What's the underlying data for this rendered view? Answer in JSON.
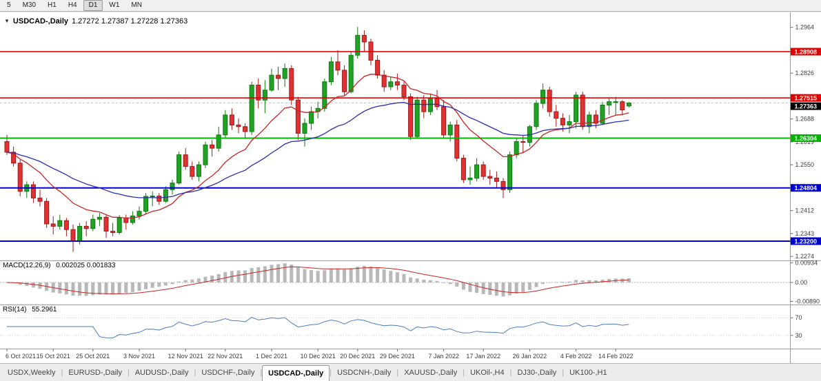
{
  "icons": {
    "collapse_arrow": "▼"
  },
  "toolbar": {
    "periods": [
      "5",
      "M30",
      "H1",
      "H4",
      "D1",
      "W1",
      "MN"
    ],
    "active_period": "D1"
  },
  "chart": {
    "symbol_label": "USDCAD-,Daily",
    "ohlc_label": "1.27272 1.27387 1.27228 1.27363",
    "price_axis_labels": [
      "1.2964",
      "1.2826",
      "1.2688",
      "1.2619",
      "1.2550",
      "1.2412",
      "1.2343",
      "1.2274"
    ],
    "levels": [
      {
        "label": "1.28908",
        "price": 1.28908,
        "color": "#e00000",
        "width": 1.6
      },
      {
        "label": "1.27515",
        "price": 1.27515,
        "color": "#e00000",
        "width": 1.6
      },
      {
        "label": "1.26304",
        "price": 1.26304,
        "color": "#00b400",
        "width": 2
      },
      {
        "label": "1.24804",
        "price": 1.24804,
        "color": "#0000d0",
        "width": 2
      },
      {
        "label": "1.23200",
        "price": 1.232,
        "color": "#0000d0",
        "width": 2
      }
    ],
    "current_price": {
      "label": "1.27363",
      "value": 1.27363,
      "badge_color": "#000000"
    }
  },
  "macd_panel": {
    "title": "MACD(12,26,9)",
    "values": "0.002025 0.001833",
    "axis_labels": [
      "0.00934",
      "0.00",
      "-0.00890"
    ]
  },
  "rsi_panel": {
    "title": "RSI(14)",
    "value": "55.2961",
    "axis_labels": [
      "70",
      "30"
    ]
  },
  "date_axis": {
    "ticks": [
      {
        "label": "6 Oct 2021",
        "index": 0
      },
      {
        "label": "15 Oct 2021",
        "index": 7
      },
      {
        "label": "25 Oct 2021",
        "index": 13
      },
      {
        "label": "3 Nov 2021",
        "index": 20
      },
      {
        "label": "12 Nov 2021",
        "index": 27
      },
      {
        "label": "22 Nov 2021",
        "index": 33
      },
      {
        "label": "1 Dec 2021",
        "index": 40
      },
      {
        "label": "10 Dec 2021",
        "index": 47
      },
      {
        "label": "20 Dec 2021",
        "index": 53
      },
      {
        "label": "29 Dec 2021",
        "index": 59
      },
      {
        "label": "7 Jan 2022",
        "index": 66
      },
      {
        "label": "17 Jan 2022",
        "index": 72
      },
      {
        "label": "26 Jan 2022",
        "index": 79
      },
      {
        "label": "4 Feb 2022",
        "index": 86
      },
      {
        "label": "14 Feb 2022",
        "index": 92
      }
    ]
  },
  "tabs": {
    "separator": "|",
    "items": [
      {
        "label": "USDX,Weekly",
        "active": false
      },
      {
        "label": "EURUSD-,Daily",
        "active": false
      },
      {
        "label": "AUDUSD-,Daily",
        "active": false
      },
      {
        "label": "USDCHF-,Daily",
        "active": false
      },
      {
        "label": "USDCAD-,Daily",
        "active": true
      },
      {
        "label": "USDCNH-,Daily",
        "active": false
      },
      {
        "label": "XAUUSD-,Daily",
        "active": false
      },
      {
        "label": "UKOil-,H4",
        "active": false
      },
      {
        "label": "DJ30-,Daily",
        "active": false
      },
      {
        "label": "UK100-,H1",
        "active": false
      }
    ]
  },
  "chart_data": {
    "type": "candlestick",
    "symbol": "USDCAD-",
    "timeframe": "Daily",
    "ylim": [
      1.2262,
      1.3009
    ],
    "bull_color": "#21a126",
    "bull_stroke": "#0c7a0e",
    "bear_color": "#e03232",
    "bear_stroke": "#a01818",
    "candles": [
      [
        1.262,
        1.264,
        1.258,
        1.2588
      ],
      [
        1.2588,
        1.2605,
        1.2545,
        1.2555
      ],
      [
        1.2555,
        1.2565,
        1.2455,
        1.247
      ],
      [
        1.247,
        1.25,
        1.245,
        1.249
      ],
      [
        1.249,
        1.25,
        1.2435,
        1.245
      ],
      [
        1.245,
        1.2475,
        1.2425,
        1.244
      ],
      [
        1.244,
        1.245,
        1.236,
        1.2372
      ],
      [
        1.2372,
        1.2395,
        1.234,
        1.2365
      ],
      [
        1.2365,
        1.24,
        1.2355,
        1.2382
      ],
      [
        1.2382,
        1.239,
        1.2335,
        1.2355
      ],
      [
        1.2355,
        1.237,
        1.2288,
        1.232
      ],
      [
        1.232,
        1.2375,
        1.231,
        1.2365
      ],
      [
        1.2365,
        1.238,
        1.2335,
        1.2358
      ],
      [
        1.2358,
        1.24,
        1.235,
        1.2386
      ],
      [
        1.2386,
        1.2405,
        1.2365,
        1.2392
      ],
      [
        1.2392,
        1.2398,
        1.233,
        1.235
      ],
      [
        1.235,
        1.2375,
        1.2335,
        1.2346
      ],
      [
        1.2346,
        1.2398,
        1.234,
        1.239
      ],
      [
        1.239,
        1.24,
        1.2355,
        1.2376
      ],
      [
        1.2376,
        1.241,
        1.237,
        1.2396
      ],
      [
        1.2396,
        1.2425,
        1.2385,
        1.241
      ],
      [
        1.241,
        1.2465,
        1.24,
        1.2455
      ],
      [
        1.2455,
        1.247,
        1.2425,
        1.2456
      ],
      [
        1.2456,
        1.2465,
        1.243,
        1.244
      ],
      [
        1.244,
        1.2485,
        1.2435,
        1.2475
      ],
      [
        1.2475,
        1.2505,
        1.246,
        1.2495
      ],
      [
        1.2495,
        1.259,
        1.249,
        1.258
      ],
      [
        1.258,
        1.26,
        1.2535,
        1.2545
      ],
      [
        1.2545,
        1.256,
        1.2505,
        1.2515
      ],
      [
        1.2515,
        1.256,
        1.25,
        1.255
      ],
      [
        1.255,
        1.262,
        1.254,
        1.261
      ],
      [
        1.261,
        1.2625,
        1.2575,
        1.26
      ],
      [
        1.26,
        1.2665,
        1.259,
        1.264
      ],
      [
        1.264,
        1.2715,
        1.263,
        1.27
      ],
      [
        1.27,
        1.272,
        1.2655,
        1.267
      ],
      [
        1.267,
        1.269,
        1.2645,
        1.2665
      ],
      [
        1.2665,
        1.2675,
        1.263,
        1.265
      ],
      [
        1.265,
        1.28,
        1.264,
        1.279
      ],
      [
        1.279,
        1.281,
        1.272,
        1.2745
      ],
      [
        1.2745,
        1.2805,
        1.2705,
        1.2775
      ],
      [
        1.2775,
        1.284,
        1.277,
        1.282
      ],
      [
        1.282,
        1.2845,
        1.2775,
        1.281
      ],
      [
        1.281,
        1.2855,
        1.2785,
        1.284
      ],
      [
        1.284,
        1.285,
        1.273,
        1.2745
      ],
      [
        1.2745,
        1.2755,
        1.2625,
        1.2645
      ],
      [
        1.2645,
        1.269,
        1.2605,
        1.2675
      ],
      [
        1.2675,
        1.2725,
        1.2655,
        1.271
      ],
      [
        1.271,
        1.274,
        1.269,
        1.272
      ],
      [
        1.272,
        1.281,
        1.271,
        1.28
      ],
      [
        1.28,
        1.2875,
        1.279,
        1.286
      ],
      [
        1.286,
        1.2895,
        1.282,
        1.2835
      ],
      [
        1.2835,
        1.285,
        1.276,
        1.277
      ],
      [
        1.277,
        1.289,
        1.2765,
        1.288
      ],
      [
        1.288,
        1.2965,
        1.287,
        1.294
      ],
      [
        1.294,
        1.2955,
        1.289,
        1.292
      ],
      [
        1.292,
        1.293,
        1.285,
        1.2865
      ],
      [
        1.2865,
        1.288,
        1.281,
        1.282
      ],
      [
        1.282,
        1.2835,
        1.277,
        1.2785
      ],
      [
        1.2785,
        1.2815,
        1.2775,
        1.28
      ],
      [
        1.28,
        1.2825,
        1.2775,
        1.279
      ],
      [
        1.279,
        1.28,
        1.2745,
        1.2755
      ],
      [
        1.2755,
        1.2765,
        1.2625,
        1.2635
      ],
      [
        1.2635,
        1.2755,
        1.263,
        1.2745
      ],
      [
        1.2745,
        1.276,
        1.269,
        1.271
      ],
      [
        1.271,
        1.2765,
        1.27,
        1.275
      ],
      [
        1.275,
        1.2775,
        1.2715,
        1.2725
      ],
      [
        1.2725,
        1.2745,
        1.263,
        1.264
      ],
      [
        1.264,
        1.268,
        1.262,
        1.267
      ],
      [
        1.267,
        1.2685,
        1.256,
        1.257
      ],
      [
        1.257,
        1.258,
        1.2495,
        1.2505
      ],
      [
        1.2505,
        1.2545,
        1.249,
        1.251
      ],
      [
        1.251,
        1.257,
        1.25,
        1.255
      ],
      [
        1.255,
        1.256,
        1.2505,
        1.2515
      ],
      [
        1.2515,
        1.2535,
        1.249,
        1.251
      ],
      [
        1.251,
        1.253,
        1.248,
        1.25
      ],
      [
        1.25,
        1.251,
        1.245,
        1.2475
      ],
      [
        1.2475,
        1.259,
        1.2465,
        1.258
      ],
      [
        1.258,
        1.263,
        1.257,
        1.262
      ],
      [
        1.262,
        1.264,
        1.2585,
        1.2618
      ],
      [
        1.2618,
        1.267,
        1.2605,
        1.2665
      ],
      [
        1.2665,
        1.2745,
        1.2655,
        1.2735
      ],
      [
        1.2735,
        1.2795,
        1.272,
        1.2775
      ],
      [
        1.2775,
        1.2785,
        1.2695,
        1.271
      ],
      [
        1.271,
        1.273,
        1.2665,
        1.269
      ],
      [
        1.269,
        1.2705,
        1.265,
        1.267
      ],
      [
        1.267,
        1.27,
        1.2645,
        1.268
      ],
      [
        1.268,
        1.277,
        1.266,
        1.276
      ],
      [
        1.276,
        1.277,
        1.2655,
        1.2665
      ],
      [
        1.2665,
        1.271,
        1.2645,
        1.27
      ],
      [
        1.27,
        1.2715,
        1.266,
        1.2675
      ],
      [
        1.2675,
        1.274,
        1.267,
        1.273
      ],
      [
        1.273,
        1.275,
        1.27,
        1.274
      ],
      [
        1.274,
        1.2755,
        1.27,
        1.274
      ],
      [
        1.274,
        1.2745,
        1.27,
        1.2715
      ],
      [
        1.27272,
        1.27387,
        1.27228,
        1.27363
      ]
    ],
    "overlays": [
      {
        "name": "ma-fast-line",
        "type": "ema",
        "period": 13,
        "color": "#cc2222"
      },
      {
        "name": "ma-slow-line",
        "type": "ema",
        "period": 34,
        "color": "#2b2bb0"
      }
    ],
    "indicators": {
      "macd": {
        "fast": 12,
        "slow": 26,
        "signal": 9,
        "ylim": [
          -0.0104,
          0.0104
        ],
        "histogram_color": "#b8b8b8",
        "signal_color": "#cc2222"
      },
      "rsi": {
        "period": 14,
        "ylim": [
          0,
          100
        ],
        "levels": [
          30,
          70
        ],
        "color": "#4a7ebb"
      }
    }
  }
}
